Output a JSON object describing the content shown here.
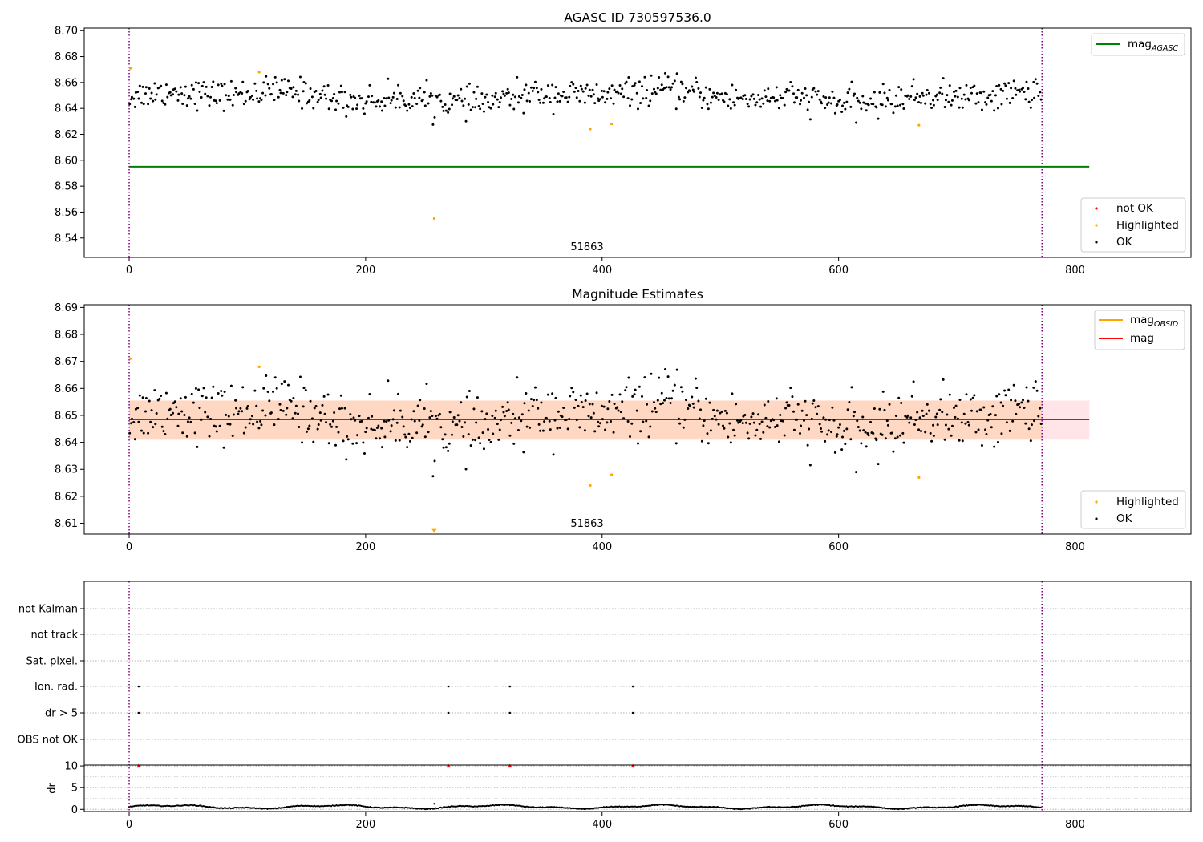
{
  "colors": {
    "ok": "#000000",
    "highlighted": "#ffa500",
    "not_ok": "#ff0000",
    "agasc_line": "#008000",
    "mag_line": "#ff0000",
    "obsid_line": "#ffa500",
    "band_inner": "#ffd8c4",
    "band_outer": "#ffe4e8",
    "obs_boundary": "#800080"
  },
  "chart_data": [
    {
      "type": "scatter",
      "title": "AGASC ID 730597536.0",
      "xlim": [
        -38,
        898
      ],
      "ylim": [
        8.525,
        8.702
      ],
      "xticks": [
        "0",
        "200",
        "400",
        "600",
        "800"
      ],
      "yticks": [
        "8.54",
        "8.56",
        "8.58",
        "8.60",
        "8.62",
        "8.64",
        "8.66",
        "8.68",
        "8.70"
      ],
      "obsid_label": "51863",
      "obs_boundaries_x": [
        0,
        772
      ],
      "agasc_mag": 8.595,
      "agasc_line_x": [
        0,
        812
      ],
      "legend_lines": [
        {
          "main": "mag",
          "sub": "AGASC"
        }
      ],
      "legend_points": [
        "not OK",
        "Highlighted",
        "OK"
      ],
      "highlighted_points": [
        [
          1,
          8.671
        ],
        [
          110,
          8.668
        ],
        [
          258,
          8.555
        ],
        [
          390,
          8.624
        ],
        [
          408,
          8.628
        ],
        [
          668,
          8.627
        ]
      ],
      "ok_series": {
        "name": "OK",
        "x_range": [
          0,
          772
        ],
        "n_points": 700,
        "mean": 8.649,
        "scatter": 0.0055
      }
    },
    {
      "type": "scatter",
      "title": "Magnitude Estimates",
      "xlim": [
        -38,
        898
      ],
      "ylim": [
        8.606,
        8.691
      ],
      "xticks": [
        "0",
        "200",
        "400",
        "600",
        "800"
      ],
      "yticks": [
        "8.61",
        "8.62",
        "8.63",
        "8.64",
        "8.65",
        "8.66",
        "8.67",
        "8.68",
        "8.69"
      ],
      "obsid_label": "51863",
      "obs_boundaries_x": [
        0,
        772
      ],
      "mag": 8.6485,
      "band": [
        8.641,
        8.6555
      ],
      "band_x": [
        0,
        812
      ],
      "legend_lines": [
        {
          "main": "mag",
          "sub": "OBSID"
        },
        {
          "main": "mag",
          "sub": ""
        }
      ],
      "legend_points": [
        "Highlighted",
        "OK"
      ],
      "highlighted_points": [
        [
          1,
          8.671
        ],
        [
          110,
          8.668
        ],
        [
          258,
          8.607
        ],
        [
          390,
          8.624
        ],
        [
          408,
          8.628
        ],
        [
          668,
          8.627
        ]
      ]
    },
    {
      "type": "scatter",
      "title": "",
      "xlim": [
        -38,
        898
      ],
      "xticks": [
        "0",
        "200",
        "400",
        "600",
        "800"
      ],
      "flag_rows": [
        "not Kalman",
        "not track",
        "Sat. pixel.",
        "Ion. rad.",
        "dr > 5",
        "OBS not OK"
      ],
      "flag_points": {
        "Ion. rad.": [
          8,
          270,
          322,
          426
        ],
        "dr > 5": [
          8,
          270,
          322,
          426
        ]
      },
      "obs_boundaries_x": [
        0,
        772
      ],
      "dr": {
        "ylabel": "dr",
        "yticks": [
          "0",
          "5",
          "10"
        ],
        "ylim": [
          -0.5,
          10.2
        ],
        "clipped_x": [
          8,
          270,
          322,
          426
        ],
        "spike": [
          [
            258,
            1.3
          ]
        ],
        "baseline": 0.5
      }
    }
  ]
}
